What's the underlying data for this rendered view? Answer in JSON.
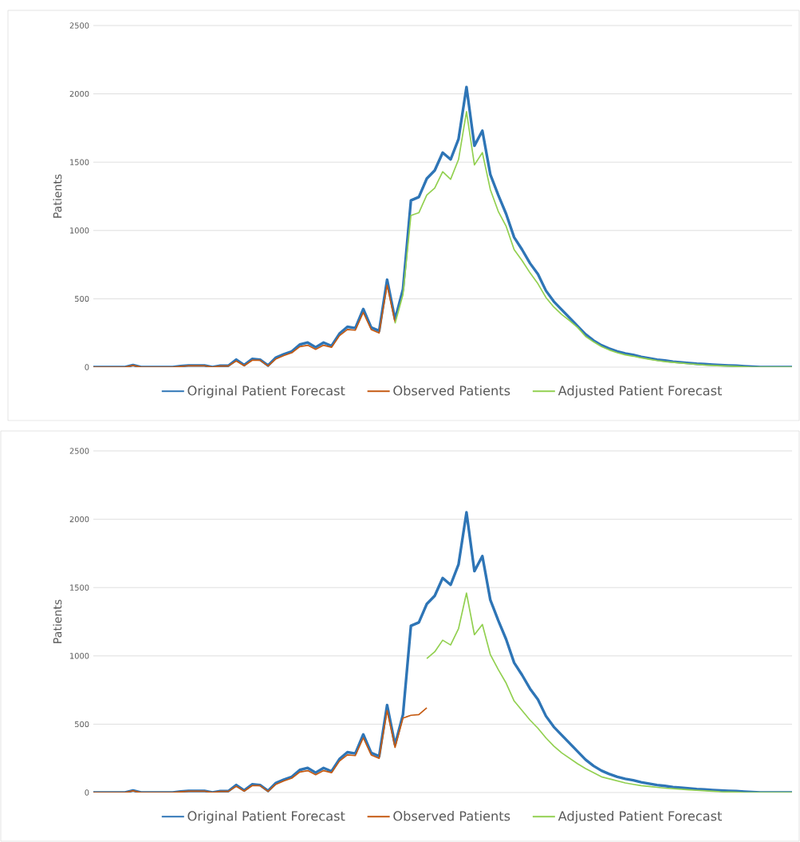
{
  "chart_data": [
    {
      "type": "line",
      "ylabel": "Patients",
      "categories": [
        null,
        null,
        null,
        null,
        null,
        null,
        null,
        null,
        null,
        null,
        null,
        null,
        null,
        null,
        null,
        null,
        null,
        null,
        null,
        null,
        null,
        null,
        null,
        null,
        null,
        null,
        null,
        null,
        null,
        null,
        null,
        null,
        null,
        null,
        null,
        null,
        null,
        null,
        null,
        null,
        null,
        null,
        null,
        null,
        null,
        null,
        null,
        null,
        null,
        null,
        null,
        null,
        null,
        null,
        null,
        null,
        null,
        null,
        null,
        null,
        null,
        null,
        null,
        null,
        null,
        null,
        null,
        null,
        null,
        null,
        null,
        null,
        null,
        null,
        null,
        null,
        null,
        null,
        null,
        null,
        null,
        null,
        null,
        null,
        null,
        null,
        null,
        null,
        null
      ],
      "ylim": [
        0,
        2500
      ],
      "yticks": [
        0,
        500,
        1000,
        1500,
        2000,
        2500
      ],
      "grid": "y",
      "legend": "bottom",
      "series": [
        {
          "name": "Original Patient Forecast",
          "color": "#2e75b6",
          "values": [
            0,
            0,
            0,
            0,
            0,
            15,
            0,
            0,
            0,
            0,
            0,
            8,
            12,
            12,
            12,
            0,
            10,
            10,
            55,
            15,
            60,
            55,
            12,
            70,
            95,
            115,
            165,
            180,
            145,
            180,
            155,
            245,
            295,
            285,
            425,
            290,
            265,
            640,
            350,
            570,
            1220,
            1245,
            1380,
            1440,
            1570,
            1520,
            1670,
            2050,
            1620,
            1730,
            1410,
            1260,
            1120,
            950,
            860,
            760,
            680,
            560,
            480,
            420,
            360,
            300,
            240,
            195,
            160,
            135,
            115,
            100,
            90,
            75,
            65,
            55,
            48,
            40,
            35,
            30,
            25,
            22,
            18,
            15,
            12,
            10,
            6,
            3,
            0,
            0,
            0,
            0,
            0
          ]
        },
        {
          "name": "Observed Patients",
          "color": "#c55a11",
          "values": [
            0,
            0,
            0,
            0,
            0,
            12,
            0,
            0,
            0,
            0,
            0,
            5,
            10,
            10,
            10,
            0,
            8,
            8,
            45,
            10,
            50,
            50,
            8,
            60,
            85,
            105,
            150,
            160,
            130,
            160,
            145,
            230,
            275,
            270,
            400,
            275,
            250,
            600,
            330,
            null,
            null,
            null,
            null,
            null,
            null,
            null,
            null,
            null,
            null,
            null,
            null,
            null,
            null,
            null,
            null,
            null,
            null,
            null,
            null,
            null,
            null,
            null,
            null,
            null,
            null,
            null,
            null,
            null,
            null,
            null,
            null,
            null,
            null,
            null,
            null,
            null,
            null,
            null,
            null,
            null,
            null,
            null,
            null,
            null,
            null,
            null,
            null,
            null,
            null
          ]
        },
        {
          "name": "Adjusted Patient Forecast",
          "color": "#92d050",
          "values": [
            null,
            null,
            null,
            null,
            null,
            null,
            null,
            null,
            null,
            null,
            null,
            null,
            null,
            null,
            null,
            null,
            null,
            null,
            null,
            null,
            null,
            null,
            null,
            null,
            null,
            null,
            null,
            null,
            null,
            null,
            null,
            null,
            null,
            null,
            null,
            null,
            null,
            null,
            320,
            530,
            1110,
            1130,
            1260,
            1310,
            1430,
            1375,
            1520,
            1870,
            1480,
            1570,
            1300,
            1140,
            1030,
            860,
            780,
            690,
            610,
            510,
            440,
            385,
            340,
            290,
            225,
            185,
            150,
            125,
            105,
            90,
            80,
            68,
            58,
            48,
            40,
            35,
            30,
            25,
            20,
            15,
            12,
            10,
            8,
            5,
            3,
            0,
            0,
            0,
            0,
            0,
            0
          ]
        }
      ]
    },
    {
      "type": "line",
      "ylabel": "Patients",
      "categories": [
        null,
        null,
        null,
        null,
        null,
        null,
        null,
        null,
        null,
        null,
        null,
        null,
        null,
        null,
        null,
        null,
        null,
        null,
        null,
        null,
        null,
        null,
        null,
        null,
        null,
        null,
        null,
        null,
        null,
        null,
        null,
        null,
        null,
        null,
        null,
        null,
        null,
        null,
        null,
        null,
        null,
        null,
        null,
        null,
        null,
        null,
        null,
        null,
        null,
        null,
        null,
        null,
        null,
        null,
        null,
        null,
        null,
        null,
        null,
        null,
        null,
        null,
        null,
        null,
        null,
        null,
        null,
        null,
        null,
        null,
        null,
        null,
        null,
        null,
        null,
        null,
        null,
        null,
        null,
        null,
        null,
        null,
        null,
        null,
        null,
        null,
        null,
        null,
        null
      ],
      "ylim": [
        0,
        2500
      ],
      "yticks": [
        0,
        500,
        1000,
        1500,
        2000,
        2500
      ],
      "grid": "y",
      "legend": "bottom",
      "series": [
        {
          "name": "Original Patient Forecast",
          "color": "#2e75b6",
          "values": [
            0,
            0,
            0,
            0,
            0,
            15,
            0,
            0,
            0,
            0,
            0,
            8,
            12,
            12,
            12,
            0,
            10,
            10,
            55,
            15,
            60,
            55,
            12,
            70,
            95,
            115,
            165,
            180,
            145,
            180,
            155,
            245,
            295,
            285,
            425,
            290,
            265,
            640,
            350,
            570,
            1220,
            1245,
            1380,
            1440,
            1570,
            1520,
            1670,
            2050,
            1620,
            1730,
            1410,
            1260,
            1120,
            950,
            860,
            760,
            680,
            560,
            480,
            420,
            360,
            300,
            240,
            195,
            160,
            135,
            115,
            100,
            90,
            75,
            65,
            55,
            48,
            40,
            35,
            30,
            25,
            22,
            18,
            15,
            12,
            10,
            6,
            3,
            0,
            0,
            0,
            0,
            0
          ]
        },
        {
          "name": "Observed Patients",
          "color": "#c55a11",
          "values": [
            0,
            0,
            0,
            0,
            0,
            12,
            0,
            0,
            0,
            0,
            0,
            5,
            10,
            10,
            10,
            0,
            8,
            8,
            45,
            10,
            50,
            50,
            8,
            60,
            85,
            105,
            150,
            160,
            130,
            160,
            145,
            230,
            275,
            270,
            400,
            275,
            250,
            600,
            330,
            545,
            565,
            570,
            620,
            null,
            null,
            null,
            null,
            null,
            null,
            null,
            null,
            null,
            null,
            null,
            null,
            null,
            null,
            null,
            null,
            null,
            null,
            null,
            null,
            null,
            null,
            null,
            null,
            null,
            null,
            null,
            null,
            null,
            null,
            null,
            null,
            null,
            null,
            null,
            null,
            null,
            null,
            null,
            null,
            null,
            null,
            null,
            null,
            null,
            null
          ]
        },
        {
          "name": "Adjusted Patient Forecast",
          "color": "#92d050",
          "values": [
            null,
            null,
            null,
            null,
            null,
            null,
            null,
            null,
            null,
            null,
            null,
            null,
            null,
            null,
            null,
            null,
            null,
            null,
            null,
            null,
            null,
            null,
            null,
            null,
            null,
            null,
            null,
            null,
            null,
            null,
            null,
            null,
            null,
            null,
            null,
            null,
            null,
            null,
            null,
            null,
            null,
            null,
            980,
            1030,
            1115,
            1080,
            1200,
            1460,
            1155,
            1230,
            1010,
            900,
            800,
            670,
            600,
            530,
            470,
            400,
            340,
            290,
            250,
            210,
            175,
            145,
            115,
            100,
            85,
            70,
            60,
            50,
            45,
            38,
            32,
            28,
            24,
            20,
            16,
            13,
            10,
            6,
            4,
            2,
            0,
            0,
            0,
            0,
            0,
            0,
            0
          ]
        }
      ]
    }
  ]
}
